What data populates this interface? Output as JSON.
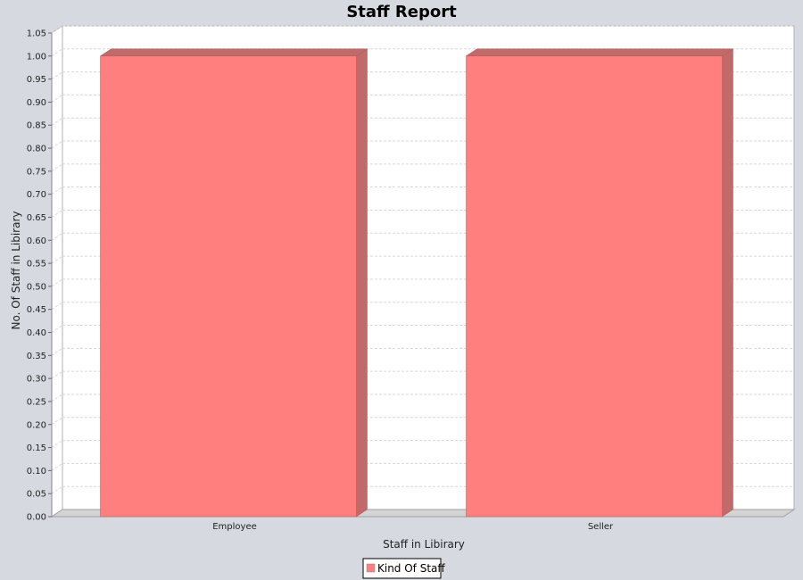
{
  "chart_data": {
    "type": "bar",
    "title": "Staff Report",
    "xlabel": "Staff in Libirary",
    "ylabel": "No. Of Staff in Libirary",
    "categories": [
      "Employee",
      "Seller"
    ],
    "series": [
      {
        "name": "Kind Of Staff",
        "values": [
          1.0,
          1.0
        ]
      }
    ],
    "ylim": [
      0,
      1.05
    ],
    "ytick_step": 0.05,
    "yticks": [
      "0.00",
      "0.05",
      "0.10",
      "0.15",
      "0.20",
      "0.25",
      "0.30",
      "0.35",
      "0.40",
      "0.45",
      "0.50",
      "0.55",
      "0.60",
      "0.65",
      "0.70",
      "0.75",
      "0.80",
      "0.85",
      "0.90",
      "0.95",
      "1.00",
      "1.05"
    ],
    "grid": true,
    "legend_position": "bottom-center",
    "style": "3d",
    "colors": {
      "bar": "#ff7f7f",
      "bar_side": "#c06a6a",
      "bar_outline": "#b05a5a",
      "plot_bg": "#ffffff",
      "page_bg": "#d6d9e0",
      "grid": "#d8d8d8",
      "floor": "#d4d4d4"
    }
  }
}
